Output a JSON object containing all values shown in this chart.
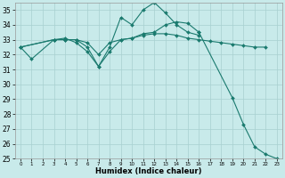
{
  "xlabel": "Humidex (Indice chaleur)",
  "ylim": [
    25,
    35.5
  ],
  "xlim": [
    -0.5,
    23.5
  ],
  "yticks": [
    25,
    26,
    27,
    28,
    29,
    30,
    31,
    32,
    33,
    34,
    35
  ],
  "xticks": [
    0,
    1,
    2,
    3,
    4,
    5,
    6,
    7,
    8,
    9,
    10,
    11,
    12,
    13,
    14,
    15,
    16,
    17,
    18,
    19,
    20,
    21,
    22,
    23
  ],
  "line_color": "#1a7a6e",
  "markersize": 2.0,
  "bg_color": "#c8eaea",
  "grid_color": "#a8d0d0",
  "fig_bg": "#c8eaea",
  "line1_x": [
    0,
    1,
    3,
    4,
    5,
    6,
    7,
    8,
    9,
    10,
    11,
    12,
    13,
    14,
    15,
    16,
    17,
    18,
    19,
    20,
    21,
    22
  ],
  "line1_y": [
    32.5,
    31.7,
    33.0,
    33.0,
    33.0,
    32.8,
    32.0,
    32.8,
    33.0,
    33.1,
    33.3,
    33.4,
    33.4,
    33.3,
    33.1,
    33.0,
    32.9,
    32.8,
    32.7,
    32.6,
    32.5,
    32.5
  ],
  "line2_x": [
    0,
    3,
    4,
    5,
    6,
    7,
    8,
    9,
    10,
    11,
    12,
    13,
    14,
    15,
    16
  ],
  "line2_y": [
    32.5,
    33.0,
    33.0,
    33.0,
    32.5,
    31.2,
    32.5,
    34.5,
    34.0,
    35.0,
    35.5,
    34.8,
    34.0,
    33.5,
    33.3
  ],
  "line3_x": [
    0,
    3,
    4,
    5,
    6,
    7,
    8,
    9,
    10,
    11,
    12,
    13,
    14,
    15,
    16
  ],
  "line3_y": [
    32.5,
    33.0,
    33.1,
    32.8,
    32.2,
    31.2,
    32.2,
    33.0,
    33.1,
    33.4,
    33.5,
    34.0,
    34.2,
    34.1,
    33.5
  ],
  "line4_x": [
    16,
    19,
    20,
    21,
    22,
    23
  ],
  "line4_y": [
    33.5,
    29.1,
    27.3,
    25.8,
    25.3,
    25.0
  ]
}
